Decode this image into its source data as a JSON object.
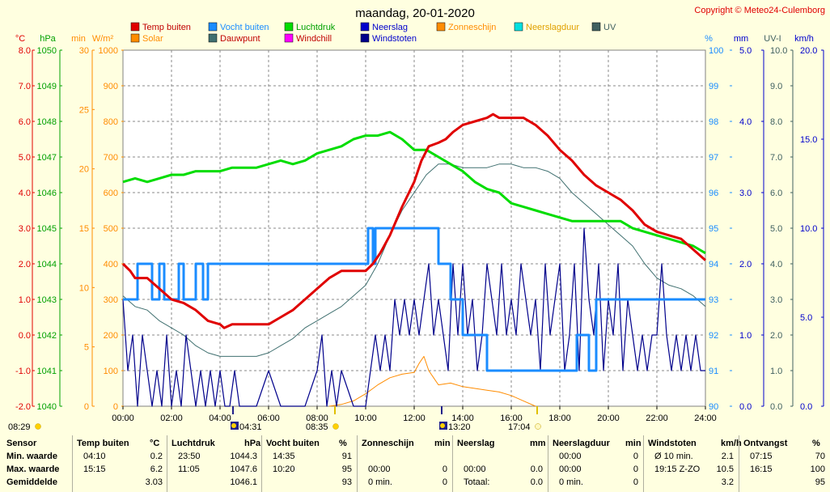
{
  "title": "maandag, 20-01-2020",
  "copyright": "Copyright © Meteo24-Culemborg",
  "colors": {
    "temp": "#e00000",
    "humidity": "#1a8cff",
    "pressure": "#00dd00",
    "rain": "#0000cc",
    "sunshine": "#ff8c00",
    "raindur": "#00e0e0",
    "uv": "#406060",
    "solar": "#ff8c00",
    "dewpoint": "#407070",
    "windchill": "#ff00ff",
    "gust": "#00008b"
  },
  "legend": [
    {
      "label": "Temp buiten",
      "color": "#e00000"
    },
    {
      "label": "Vocht buiten",
      "color": "#1a8cff"
    },
    {
      "label": "Luchtdruk",
      "color": "#00dd00"
    },
    {
      "label": "Neerslag",
      "color": "#0000cc"
    },
    {
      "label": "Zonneschijn",
      "color": "#ff8c00"
    },
    {
      "label": "Neerslagduur",
      "color": "#00e0e0"
    },
    {
      "label": "UV",
      "color": "#406060"
    },
    {
      "label": "Solar",
      "color": "#ff8c00"
    },
    {
      "label": "Dauwpunt",
      "color": "#407070"
    },
    {
      "label": "Windchill",
      "color": "#ff00ff"
    },
    {
      "label": "Windstoten",
      "color": "#00008b"
    }
  ],
  "axis_units": {
    "temp": "°C",
    "pressure": "hPa",
    "sunshine": "min",
    "solar": "W/m²",
    "humidity": "%",
    "rain": "mm",
    "uv": "UV-I",
    "wind": "km/h"
  },
  "sun_events": [
    {
      "time": "08:29",
      "type": "sunrise"
    },
    {
      "time": "04:31",
      "type": "moon"
    },
    {
      "time": "08:35",
      "type": "sun"
    },
    {
      "time": "13:20",
      "type": "moon"
    },
    {
      "time": "17:04",
      "type": "sunset"
    }
  ],
  "chart_data": {
    "type": "line",
    "x_label": "",
    "x_ticks": [
      "00:00",
      "02:00",
      "04:00",
      "06:00",
      "08:00",
      "10:00",
      "12:00",
      "14:00",
      "16:00",
      "18:00",
      "20:00",
      "22:00",
      "24:00"
    ],
    "axes": {
      "temp": {
        "min": -2,
        "max": 8,
        "ticks": [
          "8.0",
          "7.0",
          "6.0",
          "5.0",
          "4.0",
          "3.0",
          "2.0",
          "1.0",
          "0.0",
          "-1.0",
          "-2.0"
        ]
      },
      "pressure": {
        "min": 1040,
        "max": 1050,
        "ticks": [
          "1050",
          "1049",
          "1048",
          "1047",
          "1046",
          "1045",
          "1044",
          "1043",
          "1042",
          "1041",
          "1040"
        ]
      },
      "sunshine": {
        "min": 0,
        "max": 30,
        "ticks": [
          "30",
          "25",
          "20",
          "15",
          "10",
          "5",
          "0"
        ]
      },
      "solar": {
        "min": 0,
        "max": 1000,
        "ticks": [
          "1000",
          "900",
          "800",
          "700",
          "600",
          "500",
          "400",
          "300",
          "200",
          "100",
          "0"
        ]
      },
      "humidity": {
        "min": 90,
        "max": 100,
        "ticks": [
          "100",
          "99",
          "98",
          "97",
          "96",
          "95",
          "94",
          "93",
          "92",
          "91",
          "90"
        ]
      },
      "rain": {
        "min": 0,
        "max": 5,
        "ticks": [
          "5.0",
          "4.0",
          "3.0",
          "2.0",
          "1.0",
          "0.0"
        ]
      },
      "uv": {
        "min": 0,
        "max": 10,
        "ticks": [
          "10.0",
          "9.0",
          "8.0",
          "7.0",
          "6.0",
          "5.0",
          "4.0",
          "3.0",
          "2.0",
          "1.0",
          "0.0"
        ]
      },
      "wind": {
        "min": 0,
        "max": 20,
        "ticks": [
          "20.0",
          "15.0",
          "10.0",
          "5.0",
          "0.0"
        ]
      }
    },
    "series": [
      {
        "name": "Temp buiten",
        "axis": "temp",
        "x": [
          0,
          0.3,
          0.5,
          1,
          1.5,
          2,
          2.5,
          3,
          3.5,
          4,
          4.17,
          4.5,
          5,
          5.5,
          6,
          6.5,
          7,
          7.5,
          8,
          8.5,
          9,
          9.5,
          10,
          10.3,
          10.6,
          11,
          11.5,
          12,
          12.3,
          12.6,
          13,
          13.3,
          13.6,
          14,
          14.5,
          15,
          15.25,
          15.5,
          16,
          16.5,
          17,
          17.5,
          18,
          18.5,
          19,
          19.5,
          20,
          20.5,
          21,
          21.5,
          22,
          22.5,
          23,
          23.5,
          24
        ],
        "y": [
          2.0,
          1.8,
          1.6,
          1.6,
          1.3,
          1.0,
          0.9,
          0.7,
          0.4,
          0.3,
          0.2,
          0.3,
          0.3,
          0.3,
          0.3,
          0.5,
          0.7,
          1.0,
          1.3,
          1.6,
          1.8,
          1.8,
          1.8,
          2.0,
          2.3,
          2.8,
          3.6,
          4.3,
          4.9,
          5.3,
          5.4,
          5.5,
          5.7,
          5.9,
          6.0,
          6.1,
          6.2,
          6.1,
          6.1,
          6.1,
          5.9,
          5.6,
          5.2,
          4.9,
          4.5,
          4.2,
          4.0,
          3.8,
          3.5,
          3.1,
          2.9,
          2.8,
          2.7,
          2.4,
          2.1
        ]
      },
      {
        "name": "Vocht buiten",
        "axis": "humidity",
        "x": [
          0,
          0.6,
          0.6,
          1.2,
          1.2,
          1.5,
          1.5,
          1.7,
          1.7,
          2.3,
          2.3,
          2.5,
          2.5,
          3.0,
          3.0,
          3.3,
          3.3,
          3.5,
          3.5,
          4.5,
          4.5,
          10.1,
          10.1,
          10.3,
          10.3,
          10.4,
          10.4,
          10.8,
          10.8,
          13,
          13,
          13.5,
          13.5,
          14.0,
          14.0,
          15.0,
          15.0,
          18.7,
          18.7,
          19.2,
          19.2,
          19.5,
          19.5,
          24
        ],
        "y": [
          93,
          93,
          94,
          94,
          93,
          93,
          94,
          94,
          93,
          93,
          94,
          94,
          93,
          93,
          94,
          94,
          93,
          93,
          94,
          94,
          94,
          94,
          95,
          95,
          94,
          94,
          95,
          95,
          95,
          95,
          94,
          94,
          93,
          93,
          92,
          92,
          91,
          91,
          92,
          92,
          91,
          91,
          93,
          93
        ]
      },
      {
        "name": "Luchtdruk",
        "axis": "pressure",
        "x": [
          0,
          0.5,
          1,
          1.5,
          2,
          2.5,
          3,
          3.5,
          4,
          4.5,
          5,
          5.5,
          6,
          6.5,
          7,
          7.5,
          8,
          8.5,
          9,
          9.5,
          10,
          10.5,
          11,
          11.5,
          12,
          12.5,
          13,
          13.5,
          14,
          14.5,
          15,
          15.5,
          16,
          16.5,
          17,
          17.5,
          18,
          18.5,
          19,
          19.5,
          20,
          20.5,
          21,
          21.5,
          22,
          22.5,
          23,
          23.5,
          24
        ],
        "y": [
          1046.3,
          1046.4,
          1046.3,
          1046.4,
          1046.5,
          1046.5,
          1046.6,
          1046.6,
          1046.6,
          1046.7,
          1046.7,
          1046.7,
          1046.8,
          1046.9,
          1046.8,
          1046.9,
          1047.1,
          1047.2,
          1047.3,
          1047.5,
          1047.6,
          1047.6,
          1047.7,
          1047.5,
          1047.2,
          1047.2,
          1047.0,
          1046.8,
          1046.6,
          1046.3,
          1046.1,
          1046.0,
          1045.7,
          1045.6,
          1045.5,
          1045.4,
          1045.3,
          1045.2,
          1045.2,
          1045.2,
          1045.2,
          1045.2,
          1045.0,
          1044.9,
          1044.8,
          1044.7,
          1044.6,
          1044.5,
          1044.3
        ]
      },
      {
        "name": "Dauwpunt",
        "axis": "temp",
        "x": [
          0,
          0.5,
          1,
          1.5,
          2,
          2.5,
          3,
          3.5,
          4,
          4.5,
          5,
          5.5,
          6,
          6.5,
          7,
          7.5,
          8,
          8.5,
          9,
          9.5,
          10,
          10.5,
          11,
          11.5,
          12,
          12.5,
          13,
          13.5,
          14,
          14.5,
          15,
          15.5,
          16,
          16.5,
          17,
          17.5,
          18,
          18.5,
          19,
          19.5,
          20,
          20.5,
          21,
          21.5,
          22,
          22.5,
          23,
          23.5,
          24
        ],
        "y": [
          1.1,
          0.8,
          0.7,
          0.4,
          0.2,
          0.0,
          -0.3,
          -0.5,
          -0.6,
          -0.6,
          -0.6,
          -0.6,
          -0.5,
          -0.3,
          -0.1,
          0.2,
          0.4,
          0.6,
          0.8,
          1.1,
          1.4,
          2.0,
          2.8,
          3.5,
          4.0,
          4.5,
          4.8,
          4.8,
          4.7,
          4.7,
          4.7,
          4.8,
          4.8,
          4.7,
          4.7,
          4.6,
          4.4,
          4.0,
          3.7,
          3.4,
          3.1,
          2.8,
          2.5,
          2.0,
          1.6,
          1.4,
          1.3,
          1.1,
          0.8
        ]
      },
      {
        "name": "Solar",
        "axis": "solar",
        "x": [
          8.5,
          9,
          9.5,
          10,
          10.5,
          11,
          11.5,
          12,
          12.2,
          12.4,
          12.6,
          12.8,
          13,
          13.5,
          14,
          14.5,
          15,
          15.5,
          16,
          16.5,
          17
        ],
        "y": [
          0,
          5,
          15,
          35,
          60,
          80,
          90,
          95,
          120,
          140,
          100,
          80,
          60,
          65,
          55,
          50,
          45,
          40,
          30,
          15,
          0
        ]
      },
      {
        "name": "Windstoten",
        "axis": "wind",
        "x": [
          0,
          0.2,
          0.4,
          0.6,
          0.8,
          1,
          1.2,
          1.4,
          1.6,
          1.8,
          2,
          2.2,
          2.4,
          2.6,
          2.8,
          3,
          3.2,
          3.4,
          3.6,
          3.8,
          4,
          4.2,
          4.4,
          4.6,
          4.8,
          5,
          5.5,
          6,
          6.5,
          7,
          7.5,
          8,
          8.2,
          8.4,
          8.6,
          8.8,
          9,
          9.5,
          10,
          10.2,
          10.4,
          10.6,
          10.8,
          11,
          11.2,
          11.4,
          11.6,
          11.8,
          12,
          12.2,
          12.4,
          12.6,
          12.8,
          13,
          13.2,
          13.4,
          13.6,
          13.8,
          14,
          14.2,
          14.4,
          14.6,
          14.8,
          15,
          15.2,
          15.4,
          15.6,
          15.8,
          16,
          16.2,
          16.4,
          16.6,
          16.8,
          17,
          17.2,
          17.4,
          17.6,
          17.8,
          18,
          18.2,
          18.4,
          18.6,
          18.8,
          19,
          19.2,
          19.4,
          19.6,
          19.8,
          20,
          20.2,
          20.4,
          20.6,
          20.8,
          21,
          21.2,
          21.4,
          21.6,
          21.8,
          22,
          22.2,
          22.4,
          22.6,
          22.8,
          23,
          23.2,
          23.4,
          23.6,
          23.8,
          24
        ],
        "y": [
          6,
          2,
          4,
          0,
          4,
          2,
          0,
          2,
          0,
          4,
          0,
          2,
          0,
          4,
          2,
          0,
          2,
          0,
          2,
          0,
          2,
          0,
          0,
          2,
          0,
          0,
          0,
          2,
          0,
          0,
          0,
          2,
          4,
          0,
          2,
          0,
          2,
          0,
          0,
          2,
          4,
          2,
          4,
          2,
          6,
          4,
          6,
          4,
          6,
          4,
          6,
          8,
          4,
          6,
          4,
          2,
          8,
          4,
          8,
          4,
          6,
          2,
          4,
          8,
          6,
          4,
          8,
          4,
          6,
          4,
          8,
          6,
          4,
          6,
          2,
          8,
          4,
          6,
          8,
          2,
          4,
          8,
          2,
          10,
          6,
          4,
          8,
          2,
          6,
          4,
          8,
          2,
          6,
          4,
          2,
          4,
          2,
          4,
          4,
          8,
          4,
          2,
          4,
          2,
          4,
          2,
          4,
          2,
          2
        ]
      }
    ]
  },
  "table": {
    "row_labels": [
      "Sensor",
      "Min. waarde",
      "Max. waarde",
      "Gemiddelde"
    ],
    "columns": [
      {
        "h1": "Temp buiten",
        "h2": "°C",
        "rows": [
          [
            "04:10",
            "0.2"
          ],
          [
            "15:15",
            "6.2"
          ],
          [
            "",
            "3.03"
          ]
        ]
      },
      {
        "h1": "Luchtdruk",
        "h2": "hPa",
        "rows": [
          [
            "23:50",
            "1044.3"
          ],
          [
            "11:05",
            "1047.6"
          ],
          [
            "",
            "1046.1"
          ]
        ]
      },
      {
        "h1": "Vocht buiten",
        "h2": "%",
        "rows": [
          [
            "14:35",
            "91"
          ],
          [
            "10:20",
            "95"
          ],
          [
            "",
            "93"
          ]
        ]
      },
      {
        "h1": "Zonneschijn",
        "h2": "min",
        "rows": [
          [
            "",
            ""
          ],
          [
            "00:00",
            "0"
          ],
          [
            "0 min.",
            "0"
          ]
        ]
      },
      {
        "h1": "Neerslag",
        "h2": "mm",
        "rows": [
          [
            "",
            ""
          ],
          [
            "00:00",
            "0.0"
          ],
          [
            "Totaal:",
            "0.0"
          ]
        ]
      },
      {
        "h1": "Neerslagduur",
        "h2": "min",
        "rows": [
          [
            "00:00",
            "0"
          ],
          [
            "00:00",
            "0"
          ],
          [
            "0 min.",
            "0"
          ]
        ]
      },
      {
        "h1": "Windstoten",
        "h2": "km/h",
        "rows": [
          [
            "Ø 10 min.",
            "2.1"
          ],
          [
            "19:15   Z-ZO",
            "10.5"
          ],
          [
            "",
            "3.2"
          ]
        ]
      },
      {
        "h1": "Ontvangst",
        "h2": "%",
        "rows": [
          [
            "07:15",
            "70"
          ],
          [
            "16:15",
            "100"
          ],
          [
            "",
            "95"
          ]
        ]
      }
    ]
  }
}
